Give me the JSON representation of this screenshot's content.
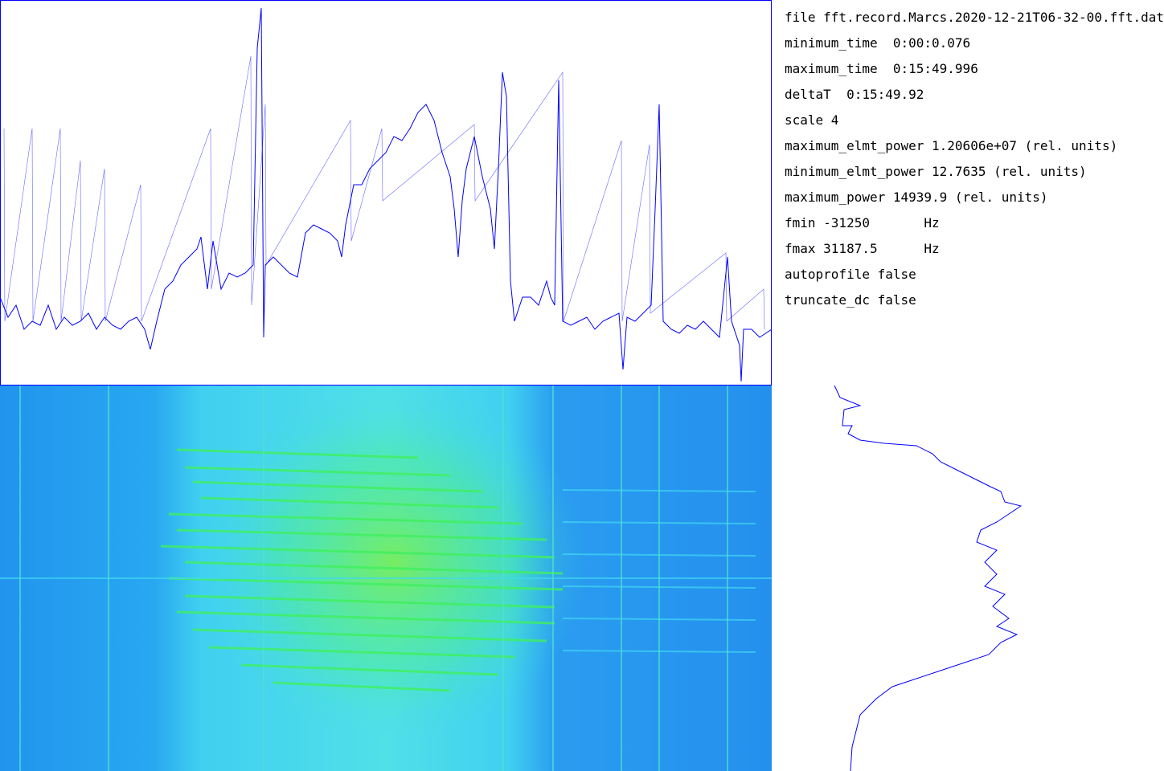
{
  "info": {
    "lines": [
      "file fft.record.Marcs.2020-12-21T06-32-00.fft.dat",
      "minimum_time  0:00:0.076",
      "maximum_time  0:15:49.996",
      "deltaT  0:15:49.92",
      "scale 4",
      "maximum_elmt_power 1.20606e+07 (rel. units)",
      "minimum_elmt_power 12.7635 (rel. units)",
      "maximum_power 14939.9 (rel. units)",
      "fmin -31250       Hz",
      "fmax 31187.5      Hz",
      "autoprofile false",
      "truncate_dc false"
    ]
  }
}
